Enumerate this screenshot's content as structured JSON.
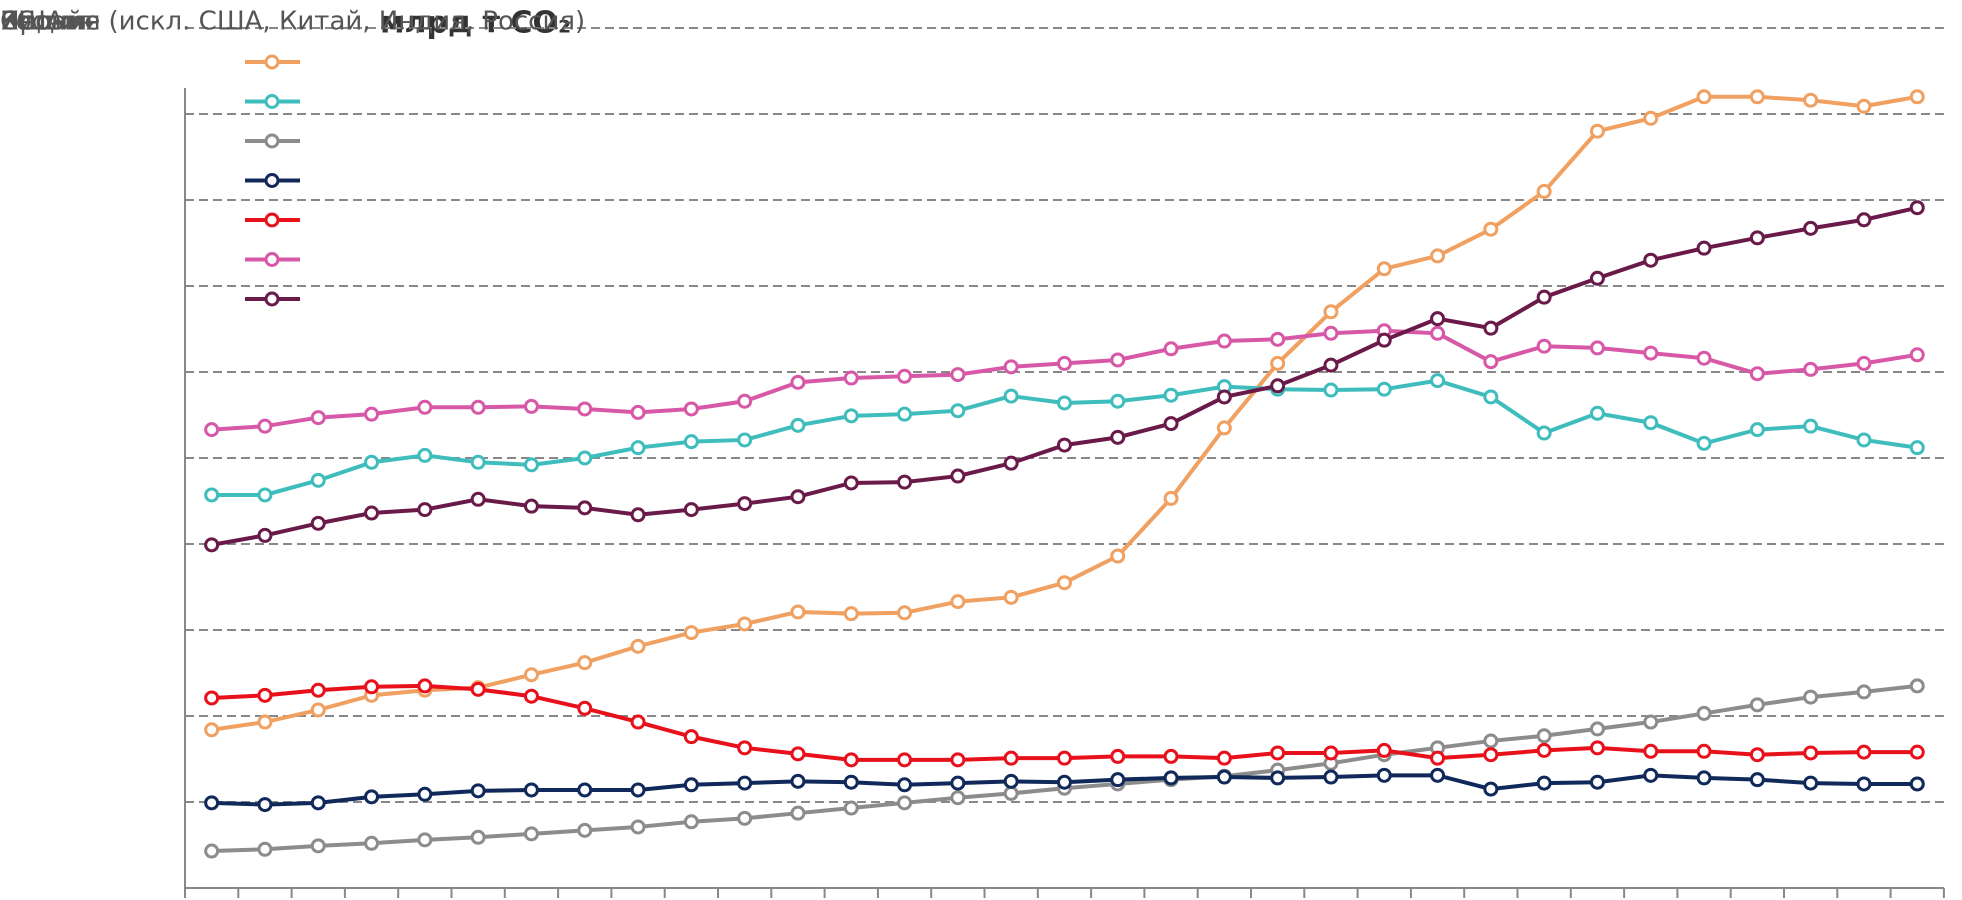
{
  "chart_data": {
    "type": "line",
    "title": "млрд т CO₂",
    "categories": [
      null,
      null,
      null,
      null,
      null,
      null,
      null,
      null,
      null,
      null,
      null,
      null,
      null,
      null,
      null,
      null,
      null,
      null,
      null,
      null,
      null,
      null,
      null,
      null,
      null,
      null,
      null,
      null,
      null,
      null,
      null,
      null,
      null
    ],
    "series": [
      {
        "name": "Китай",
        "color": "#f0a060",
        "values": [
          1.84,
          1.93,
          2.07,
          2.24,
          2.3,
          2.33,
          2.48,
          2.62,
          2.81,
          2.97,
          3.07,
          3.21,
          3.19,
          3.2,
          3.33,
          3.38,
          3.55,
          3.86,
          4.53,
          5.35,
          6.1,
          6.7,
          7.2,
          7.35,
          7.66,
          8.1,
          8.8,
          8.95,
          9.2,
          9.2,
          9.16,
          9.09,
          9.2
        ]
      },
      {
        "name": "США",
        "color": "#3fbdbd",
        "values": [
          4.57,
          4.57,
          4.74,
          4.95,
          5.03,
          4.95,
          4.92,
          5.0,
          5.12,
          5.19,
          5.21,
          5.38,
          5.49,
          5.51,
          5.55,
          5.72,
          5.64,
          5.66,
          5.73,
          5.83,
          5.8,
          5.79,
          5.8,
          5.9,
          5.71,
          5.29,
          5.52,
          5.41,
          5.17,
          5.33,
          5.37,
          5.21,
          5.12
        ]
      },
      {
        "name": "Индия",
        "color": "#8c8c8c",
        "values": [
          0.43,
          0.45,
          0.49,
          0.52,
          0.56,
          0.59,
          0.63,
          0.67,
          0.71,
          0.77,
          0.81,
          0.87,
          0.93,
          0.99,
          1.05,
          1.1,
          1.16,
          1.21,
          1.26,
          1.3,
          1.37,
          1.45,
          1.55,
          1.63,
          1.71,
          1.77,
          1.85,
          1.93,
          2.03,
          2.13,
          2.22,
          2.28,
          2.35
        ]
      },
      {
        "name": "Япония",
        "color": "#10285a",
        "values": [
          0.99,
          0.97,
          0.99,
          1.06,
          1.09,
          1.13,
          1.14,
          1.14,
          1.14,
          1.2,
          1.22,
          1.24,
          1.23,
          1.2,
          1.22,
          1.24,
          1.23,
          1.26,
          1.28,
          1.29,
          1.28,
          1.29,
          1.31,
          1.31,
          1.15,
          1.22,
          1.23,
          1.31,
          1.28,
          1.26,
          1.22,
          1.21,
          1.21
        ]
      },
      {
        "name": "Россия",
        "color": "#e8101a",
        "values": [
          2.21,
          2.24,
          2.3,
          2.34,
          2.35,
          2.31,
          2.23,
          2.09,
          1.93,
          1.76,
          1.63,
          1.56,
          1.49,
          1.49,
          1.49,
          1.51,
          1.51,
          1.53,
          1.53,
          1.51,
          1.57,
          1.57,
          1.6,
          1.51,
          1.55,
          1.6,
          1.63,
          1.59,
          1.59,
          1.55,
          1.57,
          1.58,
          1.58
        ]
      },
      {
        "name": "ЕС",
        "color": "#d858a8",
        "values": [
          5.33,
          5.37,
          5.47,
          5.51,
          5.59,
          5.59,
          5.6,
          5.57,
          5.53,
          5.57,
          5.66,
          5.88,
          5.93,
          5.95,
          5.97,
          6.06,
          6.1,
          6.14,
          6.27,
          6.36,
          6.38,
          6.45,
          6.48,
          6.45,
          6.12,
          6.3,
          6.28,
          6.22,
          6.16,
          5.98,
          6.03,
          6.1,
          6.2
        ]
      },
      {
        "name": "Прочие (искл. США, Китай, Индия, Россия)",
        "color": "#6a1a48",
        "values": [
          3.99,
          4.1,
          4.24,
          4.36,
          4.4,
          4.52,
          4.44,
          4.42,
          4.34,
          4.4,
          4.47,
          4.55,
          4.71,
          4.72,
          4.79,
          4.94,
          5.15,
          5.24,
          5.4,
          5.71,
          5.84,
          6.08,
          6.37,
          6.62,
          6.51,
          6.87,
          7.09,
          7.3,
          7.44,
          7.56,
          7.67,
          7.77,
          7.91
        ]
      }
    ],
    "ylim": [
      0,
      10
    ],
    "yticks": [
      0,
      1,
      2,
      3,
      4,
      5,
      6,
      7,
      8,
      9,
      10
    ],
    "grid": true
  }
}
